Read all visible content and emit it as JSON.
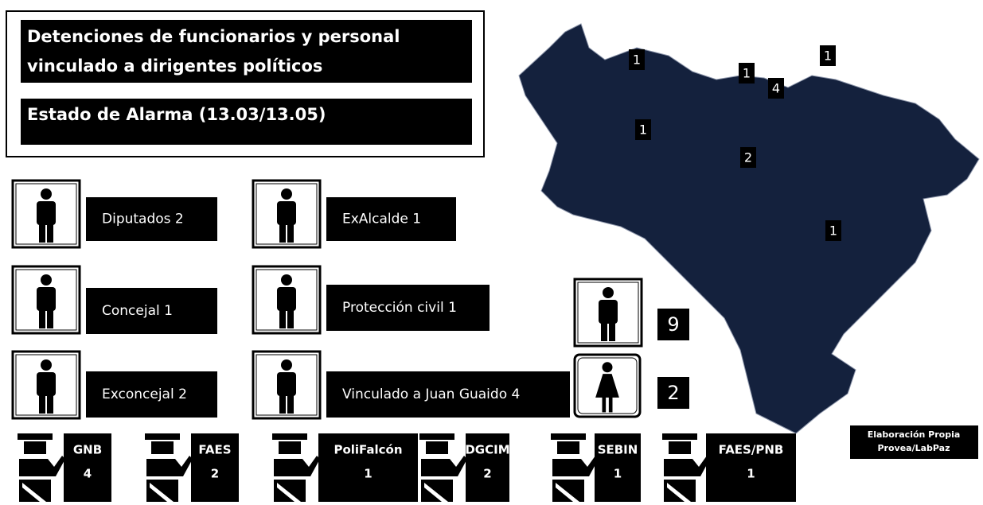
{
  "header": {
    "title_lines": [
      "Detenciones de funcionarios y personal",
      "vinculado a dirigentes políticos"
    ],
    "subtitle": "Estado de Alarma (13.03/13.05)"
  },
  "categories": [
    "Diputados 2",
    "ExAlcalde 1",
    "Concejal 1",
    "Protección civil 1",
    "Exconcejal 2",
    "Vinculado a Juan Guaido 4"
  ],
  "gender": {
    "men": 9,
    "women": 2
  },
  "map_labels": [
    1,
    1,
    4,
    1,
    1,
    2,
    1
  ],
  "source_lines": [
    "Elaboración Propia",
    "Provea/LabPaz"
  ],
  "agencies": [
    {
      "name": "GNB",
      "count": 4
    },
    {
      "name": "FAES",
      "count": 2
    },
    {
      "name": "PoliFalcón",
      "count": 1
    },
    {
      "name": "DGCIM",
      "count": 2
    },
    {
      "name": "SEBIN",
      "count": 1
    },
    {
      "name": "FAES/PNB",
      "count": 1
    }
  ]
}
